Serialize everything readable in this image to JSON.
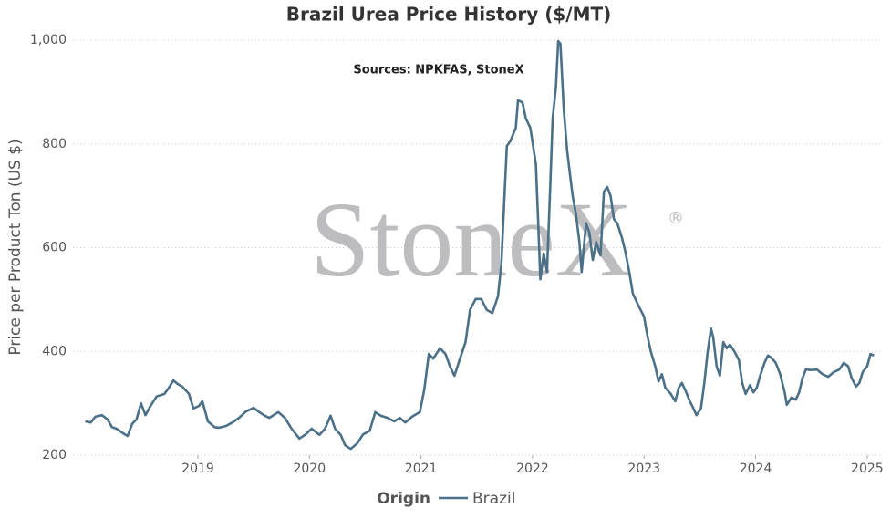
{
  "chart_data": {
    "type": "line",
    "title": "Brazil Urea Price History ($/MT)",
    "annotation": "Sources: NPKFAS, StoneX",
    "watermark": "StoneX",
    "watermark_mark": "®",
    "ylabel": "Price per Product Ton (US $)",
    "legend_title": "Origin",
    "legend": "bottom",
    "grid": true,
    "xlim": [
      2017.88,
      2025.14
    ],
    "xticks": [
      2019,
      2020,
      2021,
      2022,
      2023,
      2024,
      2025
    ],
    "ylim": [
      200,
      1000
    ],
    "yticks": [
      200,
      400,
      600,
      800,
      {
        "value": 1000,
        "label": "1,000"
      }
    ],
    "x": [
      2017.99,
      2018.04,
      2018.08,
      2018.14,
      2018.19,
      2018.23,
      2018.27,
      2018.33,
      2018.37,
      2018.41,
      2018.45,
      2018.49,
      2018.53,
      2018.57,
      2018.63,
      2018.7,
      2018.74,
      2018.78,
      2018.82,
      2018.86,
      2018.92,
      2018.96,
      2019.01,
      2019.04,
      2019.09,
      2019.15,
      2019.19,
      2019.25,
      2019.31,
      2019.37,
      2019.43,
      2019.5,
      2019.55,
      2019.6,
      2019.64,
      2019.72,
      2019.78,
      2019.84,
      2019.91,
      2019.96,
      2020.02,
      2020.09,
      2020.14,
      2020.19,
      2020.23,
      2020.28,
      2020.32,
      2020.37,
      2020.43,
      2020.48,
      2020.54,
      2020.59,
      2020.64,
      2020.7,
      2020.76,
      2020.81,
      2020.86,
      2020.92,
      2020.99,
      2021.03,
      2021.07,
      2021.11,
      2021.17,
      2021.22,
      2021.26,
      2021.3,
      2021.35,
      2021.4,
      2021.44,
      2021.49,
      2021.54,
      2021.59,
      2021.64,
      2021.69,
      2021.72,
      2021.75,
      2021.77,
      2021.8,
      2021.85,
      2021.87,
      2021.91,
      2021.94,
      2021.98,
      2022.03,
      2022.05,
      2022.07,
      2022.1,
      2022.13,
      2022.16,
      2022.18,
      2022.21,
      2022.23,
      2022.25,
      2022.28,
      2022.31,
      2022.34,
      2022.36,
      2022.39,
      2022.42,
      2022.44,
      2022.48,
      2022.51,
      2022.54,
      2022.57,
      2022.61,
      2022.64,
      2022.67,
      2022.7,
      2022.73,
      2022.76,
      2022.8,
      2022.83,
      2022.87,
      2022.9,
      2022.95,
      2023.0,
      2023.03,
      2023.06,
      2023.1,
      2023.13,
      2023.16,
      2023.19,
      2023.24,
      2023.28,
      2023.31,
      2023.34,
      2023.37,
      2023.41,
      2023.44,
      2023.47,
      2023.51,
      2023.54,
      2023.57,
      2023.6,
      2023.62,
      2023.65,
      2023.68,
      2023.71,
      2023.74,
      2023.77,
      2023.81,
      2023.85,
      2023.88,
      2023.91,
      2023.95,
      2023.98,
      2024.01,
      2024.04,
      2024.08,
      2024.11,
      2024.14,
      2024.18,
      2024.22,
      2024.26,
      2024.28,
      2024.32,
      2024.36,
      2024.39,
      2024.42,
      2024.45,
      2024.5,
      2024.55,
      2024.6,
      2024.65,
      2024.7,
      2024.75,
      2024.79,
      2024.83,
      2024.86,
      2024.9,
      2024.93,
      2024.96,
      2025.0,
      2025.03,
      2025.06
    ],
    "series": [
      {
        "name": "Brazil",
        "color": "#4b7087",
        "values": [
          265,
          263,
          274,
          277,
          269,
          254,
          251,
          242,
          237,
          260,
          269,
          300,
          277,
          293,
          313,
          318,
          330,
          344,
          337,
          332,
          318,
          290,
          295,
          304,
          265,
          254,
          253,
          256,
          263,
          272,
          284,
          291,
          283,
          276,
          272,
          283,
          272,
          251,
          232,
          239,
          251,
          239,
          251,
          276,
          251,
          239,
          219,
          212,
          223,
          240,
          247,
          283,
          276,
          272,
          265,
          272,
          263,
          274,
          283,
          327,
          395,
          386,
          406,
          395,
          371,
          353,
          386,
          418,
          480,
          501,
          501,
          480,
          474,
          506,
          567,
          708,
          796,
          805,
          831,
          884,
          880,
          849,
          831,
          761,
          655,
          539,
          589,
          553,
          726,
          849,
          910,
          998,
          993,
          866,
          787,
          734,
          699,
          664,
          611,
          553,
          647,
          629,
          576,
          611,
          585,
          708,
          717,
          699,
          655,
          647,
          620,
          594,
          550,
          511,
          488,
          467,
          430,
          400,
          371,
          342,
          356,
          330,
          318,
          304,
          330,
          339,
          325,
          304,
          291,
          277,
          290,
          339,
          400,
          444,
          427,
          371,
          353,
          418,
          406,
          413,
          400,
          383,
          339,
          318,
          335,
          321,
          330,
          353,
          378,
          392,
          388,
          378,
          356,
          321,
          297,
          311,
          307,
          321,
          348,
          365,
          364,
          365,
          356,
          351,
          360,
          365,
          378,
          371,
          349,
          332,
          339,
          360,
          371,
          395,
          392
        ]
      }
    ]
  }
}
